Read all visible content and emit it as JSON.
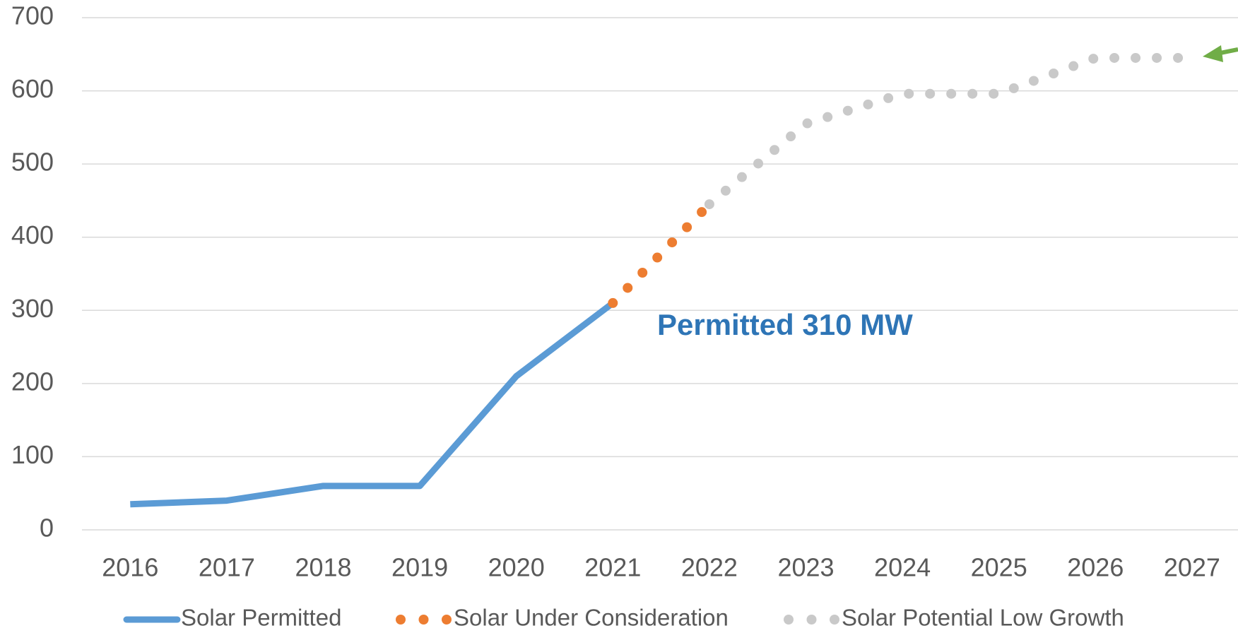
{
  "chart_data": {
    "type": "line",
    "categories": [
      "2016",
      "2017",
      "2018",
      "2019",
      "2020",
      "2021",
      "2022",
      "2023",
      "2024",
      "2025",
      "2026",
      "2027"
    ],
    "series": [
      {
        "name": "Solar Permitted",
        "color": "#5b9bd5",
        "style": "solid",
        "values": [
          35,
          40,
          60,
          60,
          210,
          310,
          null,
          null,
          null,
          null,
          null,
          null
        ]
      },
      {
        "name": "Solar Under Consideration",
        "color": "#ed7d31",
        "style": "dotted",
        "values": [
          null,
          null,
          null,
          null,
          null,
          310,
          445,
          null,
          null,
          null,
          null,
          null
        ]
      },
      {
        "name": "Solar Potential Low Growth",
        "color": "#c9c9c9",
        "style": "dotted",
        "values": [
          null,
          null,
          null,
          null,
          null,
          null,
          445,
          555,
          596,
          596,
          645,
          645
        ]
      }
    ],
    "annotation": "Permitted 310 MW",
    "ylim": [
      0,
      700
    ],
    "yticks": [
      0,
      100,
      200,
      300,
      400,
      500,
      600,
      700
    ],
    "grid": true,
    "legend": "bottom"
  }
}
